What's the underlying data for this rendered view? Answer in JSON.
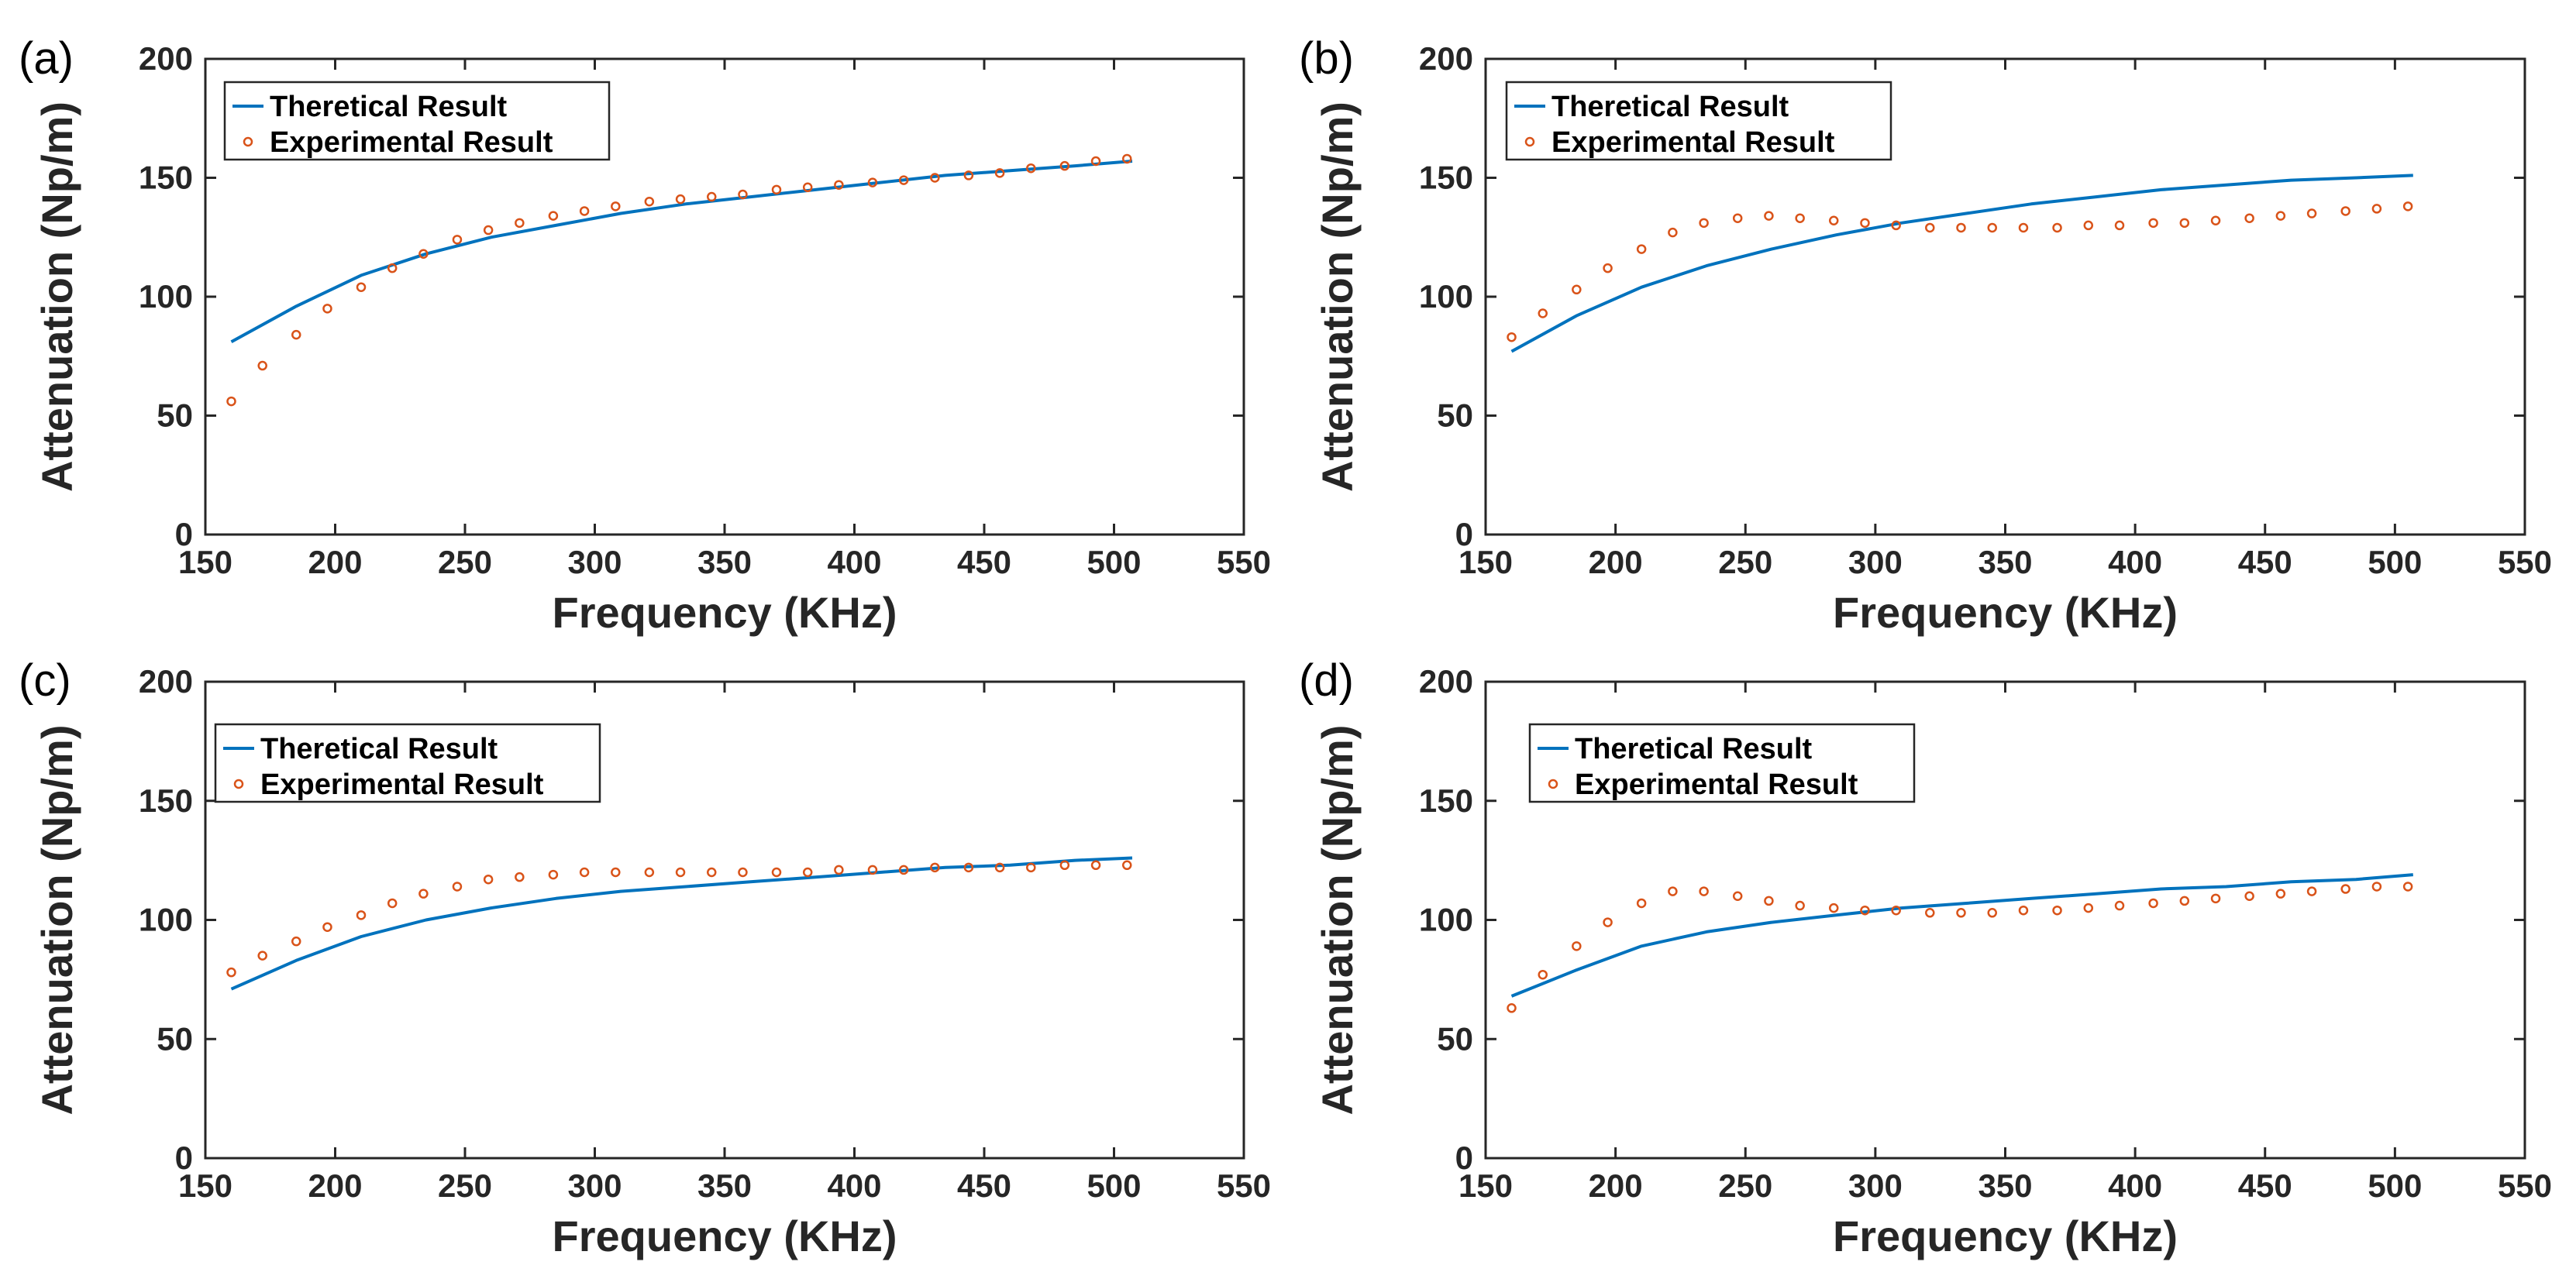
{
  "chart_data": [
    {
      "panel": "(a)",
      "type": "line",
      "xlabel": "Frequency (KHz)",
      "ylabel": "Attenuation (Np/m)",
      "xlim": [
        150,
        550
      ],
      "ylim": [
        0,
        200
      ],
      "xticks": [
        "150",
        "200",
        "250",
        "300",
        "350",
        "400",
        "450",
        "500",
        "550"
      ],
      "yticks": [
        "0",
        "50",
        "100",
        "150",
        "200"
      ],
      "legend_position": "top-left",
      "series": [
        {
          "name": "Theretical Result",
          "style": "line",
          "color": "#0072BD",
          "x": [
            160,
            185,
            210,
            235,
            260,
            285,
            310,
            335,
            360,
            385,
            410,
            435,
            460,
            485,
            507
          ],
          "y": [
            81,
            96,
            109,
            118,
            125,
            130,
            135,
            139,
            142,
            145,
            148,
            151,
            153,
            155,
            157
          ]
        },
        {
          "name": "Experimental Result",
          "style": "markers",
          "color": "#D95319",
          "x": [
            160,
            172,
            185,
            197,
            210,
            222,
            234,
            247,
            259,
            271,
            284,
            296,
            308,
            321,
            333,
            345,
            357,
            370,
            382,
            394,
            407,
            419,
            431,
            444,
            456,
            468,
            481,
            493,
            505
          ],
          "y": [
            56,
            71,
            84,
            95,
            104,
            112,
            118,
            124,
            128,
            131,
            134,
            136,
            138,
            140,
            141,
            142,
            143,
            145,
            146,
            147,
            148,
            149,
            150,
            151,
            152,
            154,
            155,
            157,
            158
          ]
        }
      ]
    },
    {
      "panel": "(b)",
      "type": "line",
      "xlabel": "Frequency (KHz)",
      "ylabel": "Attenuation (Np/m)",
      "xlim": [
        150,
        550
      ],
      "ylim": [
        0,
        200
      ],
      "xticks": [
        "150",
        "200",
        "250",
        "300",
        "350",
        "400",
        "450",
        "500",
        "550"
      ],
      "yticks": [
        "0",
        "50",
        "100",
        "150",
        "200"
      ],
      "legend_position": "top-left",
      "series": [
        {
          "name": "Theretical Result",
          "style": "line",
          "color": "#0072BD",
          "x": [
            160,
            185,
            210,
            235,
            260,
            285,
            310,
            335,
            360,
            385,
            410,
            435,
            460,
            485,
            507
          ],
          "y": [
            77,
            92,
            104,
            113,
            120,
            126,
            131,
            135,
            139,
            142,
            145,
            147,
            149,
            150,
            151
          ]
        },
        {
          "name": "Experimental Result",
          "style": "markers",
          "color": "#D95319",
          "x": [
            160,
            172,
            185,
            197,
            210,
            222,
            234,
            247,
            259,
            271,
            284,
            296,
            308,
            321,
            333,
            345,
            357,
            370,
            382,
            394,
            407,
            419,
            431,
            444,
            456,
            468,
            481,
            493,
            505
          ],
          "y": [
            83,
            93,
            103,
            112,
            120,
            127,
            131,
            133,
            134,
            133,
            132,
            131,
            130,
            129,
            129,
            129,
            129,
            129,
            130,
            130,
            131,
            131,
            132,
            133,
            134,
            135,
            136,
            137,
            138
          ]
        }
      ]
    },
    {
      "panel": "(c)",
      "type": "line",
      "xlabel": "Frequency (KHz)",
      "ylabel": "Attenuation (Np/m)",
      "xlim": [
        150,
        550
      ],
      "ylim": [
        0,
        200
      ],
      "xticks": [
        "150",
        "200",
        "250",
        "300",
        "350",
        "400",
        "450",
        "500",
        "550"
      ],
      "yticks": [
        "0",
        "50",
        "100",
        "150",
        "200"
      ],
      "legend_position": "top-left",
      "series": [
        {
          "name": "Theretical Result",
          "style": "line",
          "color": "#0072BD",
          "x": [
            160,
            185,
            210,
            235,
            260,
            285,
            310,
            335,
            360,
            385,
            410,
            435,
            460,
            485,
            507
          ],
          "y": [
            71,
            83,
            93,
            100,
            105,
            109,
            112,
            114,
            116,
            118,
            120,
            122,
            123,
            125,
            126
          ]
        },
        {
          "name": "Experimental Result",
          "style": "markers",
          "color": "#D95319",
          "x": [
            160,
            172,
            185,
            197,
            210,
            222,
            234,
            247,
            259,
            271,
            284,
            296,
            308,
            321,
            333,
            345,
            357,
            370,
            382,
            394,
            407,
            419,
            431,
            444,
            456,
            468,
            481,
            493,
            505
          ],
          "y": [
            78,
            85,
            91,
            97,
            102,
            107,
            111,
            114,
            117,
            118,
            119,
            120,
            120,
            120,
            120,
            120,
            120,
            120,
            120,
            121,
            121,
            121,
            122,
            122,
            122,
            122,
            123,
            123,
            123
          ]
        }
      ]
    },
    {
      "panel": "(d)",
      "type": "line",
      "xlabel": "Frequency (KHz)",
      "ylabel": "Attenuation (Np/m)",
      "xlim": [
        150,
        550
      ],
      "ylim": [
        0,
        200
      ],
      "xticks": [
        "150",
        "200",
        "250",
        "300",
        "350",
        "400",
        "450",
        "500",
        "550"
      ],
      "yticks": [
        "0",
        "50",
        "100",
        "150",
        "200"
      ],
      "legend_position": "top-left",
      "series": [
        {
          "name": "Theretical Result",
          "style": "line",
          "color": "#0072BD",
          "x": [
            160,
            185,
            210,
            235,
            260,
            285,
            310,
            335,
            360,
            385,
            410,
            435,
            460,
            485,
            507
          ],
          "y": [
            68,
            79,
            89,
            95,
            99,
            102,
            105,
            107,
            109,
            111,
            113,
            114,
            116,
            117,
            119
          ]
        },
        {
          "name": "Experimental Result",
          "style": "markers",
          "color": "#D95319",
          "x": [
            160,
            172,
            185,
            197,
            210,
            222,
            234,
            247,
            259,
            271,
            284,
            296,
            308,
            321,
            333,
            345,
            357,
            370,
            382,
            394,
            407,
            419,
            431,
            444,
            456,
            468,
            481,
            493,
            505
          ],
          "y": [
            63,
            77,
            89,
            99,
            107,
            112,
            112,
            110,
            108,
            106,
            105,
            104,
            104,
            103,
            103,
            103,
            104,
            104,
            105,
            106,
            107,
            108,
            109,
            110,
            111,
            112,
            113,
            114,
            114
          ]
        }
      ]
    }
  ]
}
